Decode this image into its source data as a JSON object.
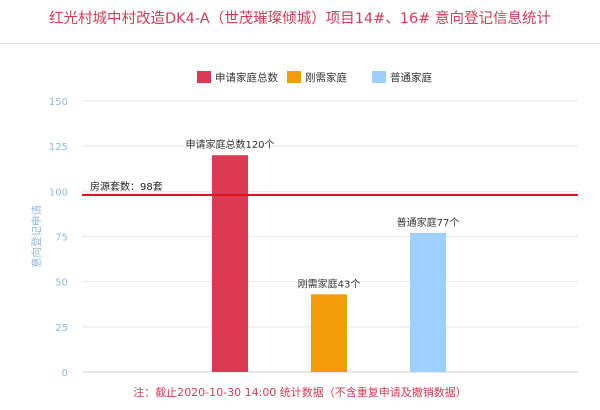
{
  "chart_data": {
    "type": "bar",
    "title": "红光村城中村改造DK4-A（世茂璀璨倾城）项目14#、16# 意向登记信息统计",
    "ylabel": "意向登记申请",
    "ylim": [
      0,
      150
    ],
    "yticks": [
      0,
      25,
      50,
      75,
      100,
      125,
      150
    ],
    "grid": true,
    "legend_position": "top-center",
    "series": [
      {
        "name": "申请家庭总数",
        "value": 120,
        "label": "申请家庭总数120个",
        "color": "#dc3a52"
      },
      {
        "name": "刚需家庭",
        "value": 43,
        "label": "刚需家庭43个",
        "color": "#f59a08"
      },
      {
        "name": "普通家庭",
        "value": 77,
        "label": "普通家庭77个",
        "color": "#9dcfff"
      }
    ],
    "reference_line": {
      "value": 98,
      "label": "房源套数：98套",
      "color": "#e0141e"
    },
    "footnote": "注：截止2020-10-30 14:00 统计数据（不含重复申请及撤销数据）"
  }
}
